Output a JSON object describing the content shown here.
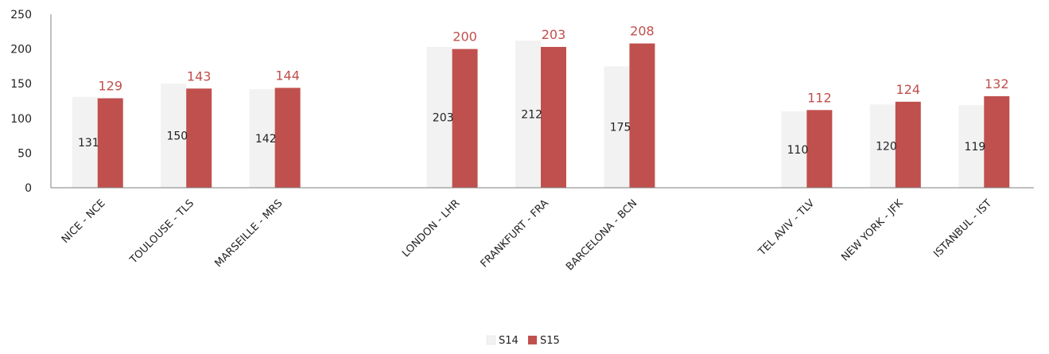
{
  "chart_data": {
    "type": "bar",
    "categories": [
      "NICE - NCE",
      "TOULOUSE - TLS",
      "MARSEILLE - MRS",
      "LONDON - LHR",
      "FRANKFURT - FRA",
      "BARCELONA - BCN",
      "TEL AVIV - TLV",
      "NEW YORK - JFK",
      "ISTANBUL - IST"
    ],
    "groups": [
      [
        0,
        1,
        2
      ],
      [
        3,
        4,
        5
      ],
      [
        6,
        7,
        8
      ]
    ],
    "series": [
      {
        "name": "S14",
        "values": [
          131,
          150,
          142,
          203,
          212,
          175,
          110,
          120,
          119
        ],
        "color": "#f2f2f2",
        "label_color": "#222222"
      },
      {
        "name": "S15",
        "values": [
          129,
          143,
          144,
          200,
          203,
          208,
          112,
          124,
          132
        ],
        "color": "#c0504d",
        "label_color": "#c0504d"
      }
    ],
    "ylim": [
      0,
      250
    ],
    "yticks": [
      "0",
      "50",
      "100",
      "150",
      "200",
      "250"
    ],
    "grid": false,
    "legend_position": "bottom-center",
    "title": "",
    "xlabel": "",
    "ylabel": ""
  }
}
